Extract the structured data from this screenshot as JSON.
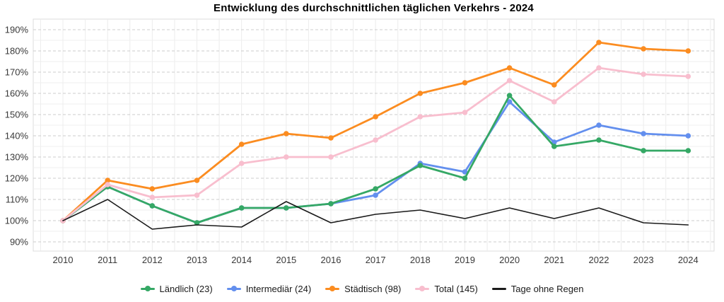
{
  "title": "Entwicklung des durchschnittlichen täglichen Verkehrs - 2024",
  "axes": {
    "y_tick_labels": [
      "190%",
      "180%",
      "170%",
      "160%",
      "150%",
      "140%",
      "130%",
      "120%",
      "110%",
      "100%",
      "90%"
    ],
    "x_tick_labels": [
      "2010",
      "2011",
      "2012",
      "2013",
      "2014",
      "2015",
      "2016",
      "2017",
      "2018",
      "2019",
      "2020",
      "2021",
      "2022",
      "2023",
      "2024"
    ]
  },
  "colors": {
    "laendlich": "#35a865",
    "intermediaer": "#638fee",
    "staedtisch": "#fb8c20",
    "total": "#f8bece",
    "tage_ohne_regen": "#1a1a1a",
    "grid_minor": "#efefef",
    "grid_major": "#cccccc",
    "plot_border": "#dcdcdc",
    "tick_text": "#3a3a3a"
  },
  "chart_data": {
    "type": "line",
    "title": "Entwicklung des durchschnittlichen täglichen Verkehrs - 2024",
    "xlabel": "",
    "ylabel": "",
    "x": [
      2010,
      2011,
      2012,
      2013,
      2014,
      2015,
      2016,
      2017,
      2018,
      2019,
      2020,
      2021,
      2022,
      2023,
      2024
    ],
    "ylim": [
      90,
      190
    ],
    "y_ticks": [
      90,
      100,
      110,
      120,
      130,
      140,
      150,
      160,
      170,
      180,
      190
    ],
    "y_tick_suffix": "%",
    "grid": true,
    "legend_position": "bottom",
    "series": [
      {
        "name": "Ländlich (23)",
        "slug": "laendlich",
        "color": "#35a865",
        "marker": true,
        "line_width": 2.8,
        "values": [
          100,
          116,
          107,
          99,
          106,
          106,
          108,
          115,
          126,
          120,
          159,
          135,
          138,
          133,
          133
        ]
      },
      {
        "name": "Intermediär (24)",
        "slug": "intermediaer",
        "color": "#638fee",
        "marker": true,
        "line_width": 2.8,
        "values": [
          100,
          116,
          107,
          99,
          106,
          106,
          108,
          112,
          127,
          123,
          156,
          137,
          145,
          141,
          140
        ]
      },
      {
        "name": "Städtisch (98)",
        "slug": "staedtisch",
        "color": "#fb8c20",
        "marker": true,
        "line_width": 2.8,
        "values": [
          100,
          119,
          115,
          119,
          136,
          141,
          139,
          149,
          160,
          165,
          172,
          164,
          184,
          181,
          180
        ]
      },
      {
        "name": "Total (145)",
        "slug": "total",
        "color": "#f8bece",
        "marker": true,
        "line_width": 2.8,
        "values": [
          100,
          117,
          111,
          112,
          127,
          130,
          130,
          138,
          149,
          151,
          166,
          156,
          172,
          169,
          168
        ]
      },
      {
        "name": "Tage ohne Regen",
        "slug": "tage-ohne-regen",
        "color": "#1a1a1a",
        "marker": false,
        "line_width": 1.6,
        "values": [
          100,
          110,
          96,
          98,
          97,
          109,
          99,
          103,
          105,
          101,
          106,
          101,
          106,
          99,
          98
        ]
      }
    ],
    "draw_order": [
      1,
      0,
      2,
      3,
      4
    ]
  }
}
